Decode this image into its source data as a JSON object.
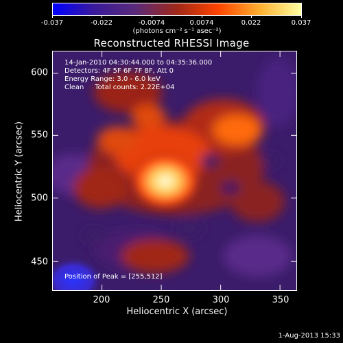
{
  "colorbar": {
    "labels": [
      "-0.037",
      "-0.022",
      "-0.0074",
      "0.0074",
      "0.022",
      "0.037"
    ],
    "units_line": "(photons cm⁻² s⁻¹ asec⁻²)",
    "colors": [
      "#0000ff",
      "#3a1a9a",
      "#5a2a7a",
      "#a02818",
      "#ff4400",
      "#ffb030",
      "#ffffa0"
    ]
  },
  "title": "Reconstructed RHESSI Image",
  "info": {
    "time_range": "14-Jan-2010 04:30:44.000 to 04:35:36.000",
    "detectors": "Detectors: 4F 5F 6F 7F 8F, Att 0",
    "energy": "Energy Range: 3.0 - 6.0 keV",
    "clean": "Clean     Total counts: 2.22E+04",
    "peak": "Position of Peak = [255,512]"
  },
  "axes": {
    "xlabel": "Heliocentric X (arcsec)",
    "ylabel": "Heliocentric Y (arcsec)",
    "xticks": [
      "200",
      "250",
      "300",
      "350"
    ],
    "yticks": [
      "450",
      "500",
      "550",
      "600"
    ]
  },
  "footer": "1-Aug-2013 15:33"
}
